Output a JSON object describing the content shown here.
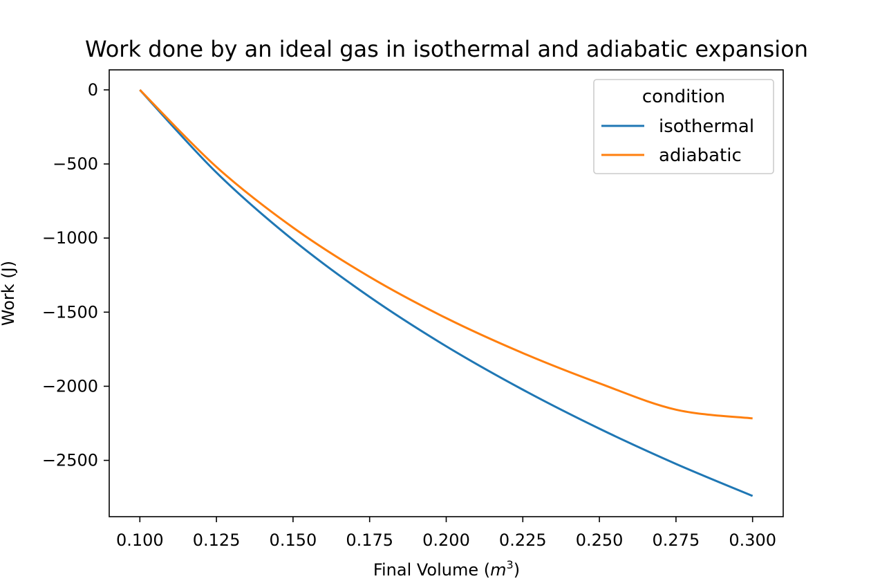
{
  "chart_data": {
    "type": "line",
    "title": "Work done by an ideal gas in isothermal and adiabatic expansion",
    "xlabel": "Final Volume (m³)",
    "xlabel_base": "Final Volume (",
    "xlabel_var": "m",
    "xlabel_sup": "3",
    "xlabel_close": ")",
    "ylabel": "Work (J)",
    "xlim": [
      0.09,
      0.31
    ],
    "ylim": [
      -2880,
      135
    ],
    "xticks": [
      0.1,
      0.125,
      0.15,
      0.175,
      0.2,
      0.225,
      0.25,
      0.275,
      0.3
    ],
    "xtick_labels": [
      "0.100",
      "0.125",
      "0.150",
      "0.175",
      "0.200",
      "0.225",
      "0.250",
      "0.275",
      "0.300"
    ],
    "yticks": [
      0,
      -500,
      -1000,
      -1500,
      -2000,
      -2500
    ],
    "ytick_labels": [
      "0",
      "−500",
      "−1000",
      "−1500",
      "−2000",
      "−2500"
    ],
    "grid": false,
    "legend": {
      "title": "condition",
      "placement": "top-right"
    },
    "x": [
      0.1,
      0.125,
      0.15,
      0.175,
      0.2,
      0.225,
      0.25,
      0.275,
      0.3
    ],
    "series": [
      {
        "name": "isothermal",
        "color": "#1f77b4",
        "values": [
          0,
          -558,
          -1013,
          -1397,
          -1730,
          -2023,
          -2286,
          -2524,
          -2740
        ]
      },
      {
        "name": "adiabatic",
        "color": "#ff7f0e",
        "values": [
          0,
          -520,
          -929,
          -1262,
          -1540,
          -1776,
          -1980,
          -2158,
          -2217
        ]
      }
    ]
  }
}
